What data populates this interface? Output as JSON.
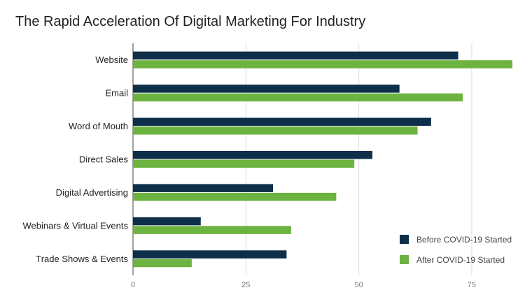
{
  "chart_data": {
    "type": "bar",
    "orientation": "horizontal",
    "title": "The Rapid Acceleration Of Digital Marketing For Industry",
    "categories": [
      "Website",
      "Email",
      "Word of Mouth",
      "Direct Sales",
      "Digital Advertising",
      "Webinars & Virtual Events",
      "Trade Shows & Events"
    ],
    "series": [
      {
        "name": "Before COVID-19 Started",
        "color": "#0e2f4a",
        "values": [
          72,
          59,
          66,
          53,
          31,
          15,
          34
        ]
      },
      {
        "name": "After COVID-19 Started",
        "color": "#6db33f",
        "values": [
          84,
          73,
          63,
          49,
          45,
          35,
          13
        ]
      }
    ],
    "x_ticks": [
      0,
      25,
      50,
      75
    ],
    "xlim": [
      0,
      84
    ],
    "grid": true,
    "legend_position": "bottom-right"
  }
}
